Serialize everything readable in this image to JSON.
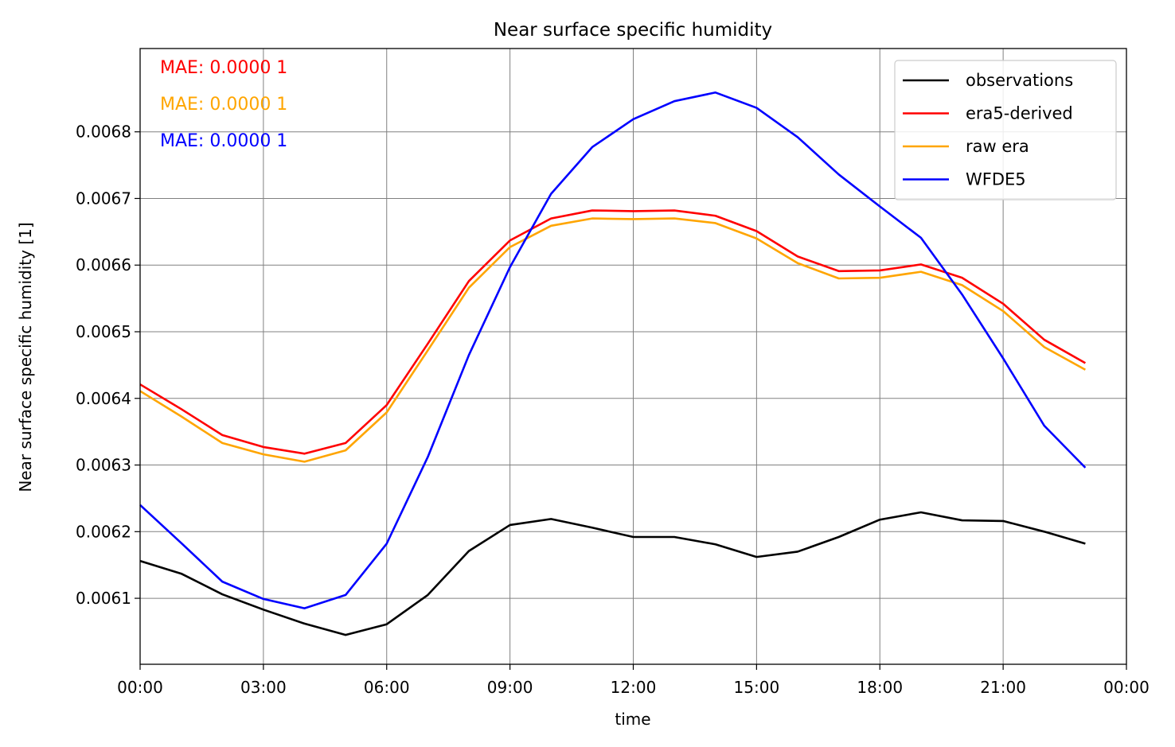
{
  "chart_data": {
    "type": "line",
    "title": "Near surface specific humidity",
    "xlabel": "time",
    "ylabel": "Near surface specific humidity [1]",
    "x": [
      0,
      1,
      2,
      3,
      4,
      5,
      6,
      7,
      8,
      9,
      10,
      11,
      12,
      13,
      14,
      15,
      16,
      17,
      18,
      19,
      20,
      21,
      22,
      23
    ],
    "xlim": [
      0,
      24
    ],
    "xticks": [
      0,
      3,
      6,
      9,
      12,
      15,
      18,
      21,
      24
    ],
    "xtick_labels": [
      "00:00",
      "03:00",
      "06:00",
      "09:00",
      "12:00",
      "15:00",
      "18:00",
      "21:00",
      "00:00"
    ],
    "ylim": [
      0.006001,
      0.006925
    ],
    "yticks": [
      0.0061,
      0.0062,
      0.0063,
      0.0064,
      0.0065,
      0.0066,
      0.0067,
      0.0068
    ],
    "ytick_labels": [
      "0.0061",
      "0.0062",
      "0.0063",
      "0.0064",
      "0.0065",
      "0.0066",
      "0.0067",
      "0.0068"
    ],
    "grid": true,
    "legend_position": "top-right",
    "series": [
      {
        "name": "observations",
        "color": "#000000",
        "values": [
          0.006156,
          0.006137,
          0.006106,
          0.006083,
          0.006062,
          0.006045,
          0.006061,
          0.006105,
          0.006171,
          0.00621,
          0.006219,
          0.006206,
          0.006192,
          0.006192,
          0.006181,
          0.006162,
          0.00617,
          0.006192,
          0.006218,
          0.006229,
          0.006217,
          0.006216,
          0.0062,
          0.006182
        ]
      },
      {
        "name": "era5-derived",
        "color": "#ff0000",
        "values": [
          0.006421,
          0.006384,
          0.006345,
          0.006327,
          0.006317,
          0.006333,
          0.00639,
          0.006482,
          0.006576,
          0.006637,
          0.00667,
          0.006682,
          0.006681,
          0.006682,
          0.006674,
          0.006651,
          0.006613,
          0.006591,
          0.006592,
          0.006601,
          0.006581,
          0.006542,
          0.006488,
          0.006453
        ]
      },
      {
        "name": "raw era",
        "color": "#ffa500",
        "values": [
          0.006411,
          0.006373,
          0.006333,
          0.006316,
          0.006305,
          0.006322,
          0.006379,
          0.006472,
          0.006566,
          0.006627,
          0.006659,
          0.00667,
          0.006669,
          0.00667,
          0.006663,
          0.00664,
          0.006603,
          0.00658,
          0.006581,
          0.00659,
          0.00657,
          0.006531,
          0.006477,
          0.006443
        ]
      },
      {
        "name": "WFDE5",
        "color": "#0000ff",
        "values": [
          0.00624,
          0.006183,
          0.006125,
          0.006099,
          0.006085,
          0.006105,
          0.006182,
          0.006312,
          0.006465,
          0.006597,
          0.006707,
          0.006777,
          0.006819,
          0.006846,
          0.006859,
          0.006836,
          0.006792,
          0.006736,
          0.006688,
          0.006641,
          0.006556,
          0.00646,
          0.006359,
          0.006296
        ]
      }
    ],
    "annotations": [
      {
        "text": "MAE: 0.0000 1",
        "color": "#ff0000"
      },
      {
        "text": "MAE: 0.0000 1",
        "color": "#ffa500"
      },
      {
        "text": "MAE: 0.0000 1",
        "color": "#0000ff"
      }
    ]
  }
}
